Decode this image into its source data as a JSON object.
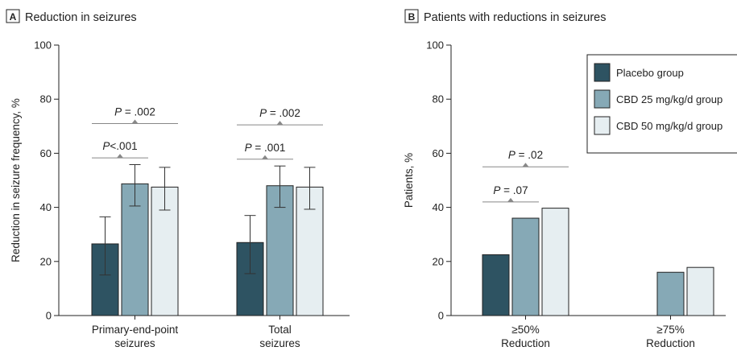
{
  "colors": {
    "placebo": "#2e5362",
    "cbd25": "#86a9b6",
    "cbd50": "#e6eef1",
    "axis": "#222222",
    "bracket": "#888888"
  },
  "legend": [
    {
      "key": "placebo",
      "label": "Placebo group"
    },
    {
      "key": "cbd25",
      "label": "CBD 25 mg/kg/d group"
    },
    {
      "key": "cbd50",
      "label": "CBD 50 mg/kg/d group"
    }
  ],
  "chart_data": [
    {
      "type": "bar",
      "panel_letter": "A",
      "title": "Reduction in seizures",
      "ylabel": "Reduction in seizure frequency, %",
      "ylim": [
        0,
        100
      ],
      "yticks": [
        "0",
        "20",
        "40",
        "60",
        "80",
        "100"
      ],
      "categories": [
        {
          "line1": "Primary-end-point",
          "line2": "seizures"
        },
        {
          "line1": "Total",
          "line2": "seizures"
        }
      ],
      "series": [
        {
          "key": "placebo",
          "values": [
            26.5,
            27
          ],
          "err_low": [
            15,
            15.5
          ],
          "err_high": [
            36.5,
            37
          ]
        },
        {
          "key": "cbd25",
          "values": [
            48.7,
            48
          ],
          "err_low": [
            40.5,
            40
          ],
          "err_high": [
            55.8,
            55.3
          ]
        },
        {
          "key": "cbd50",
          "values": [
            47.5,
            47.5
          ],
          "err_low": [
            39,
            39.3
          ],
          "err_high": [
            54.8,
            54.8
          ]
        }
      ],
      "pvalues": [
        {
          "category": 0,
          "from": 0,
          "to": 1,
          "y": 58.3,
          "label": "P",
          "value": "<.001"
        },
        {
          "category": 0,
          "from": 0,
          "to": 2,
          "y": 71,
          "label": "P",
          "value": " = .002"
        },
        {
          "category": 1,
          "from": 0,
          "to": 1,
          "y": 57.8,
          "label": "P",
          "value": " = .001"
        },
        {
          "category": 1,
          "from": 0,
          "to": 2,
          "y": 70.5,
          "label": "P",
          "value": " = .002"
        }
      ]
    },
    {
      "type": "bar",
      "panel_letter": "B",
      "title": "Patients with reductions in seizures",
      "ylabel": "Patients, %",
      "ylim": [
        0,
        100
      ],
      "yticks": [
        "0",
        "20",
        "40",
        "60",
        "80",
        "100"
      ],
      "categories": [
        {
          "line1": "≥50%",
          "line2": "Reduction"
        },
        {
          "line1": "≥75%",
          "line2": "Reduction"
        }
      ],
      "series": [
        {
          "key": "placebo",
          "values": [
            22.5,
            0
          ]
        },
        {
          "key": "cbd25",
          "values": [
            36,
            16
          ]
        },
        {
          "key": "cbd50",
          "values": [
            39.7,
            17.8
          ]
        }
      ],
      "pvalues": [
        {
          "category": 0,
          "from": 0,
          "to": 1,
          "y": 42,
          "label": "P",
          "value": " = .07"
        },
        {
          "category": 0,
          "from": 0,
          "to": 2,
          "y": 55,
          "label": "P",
          "value": " = .02"
        }
      ],
      "legend_position": "top-right"
    }
  ]
}
